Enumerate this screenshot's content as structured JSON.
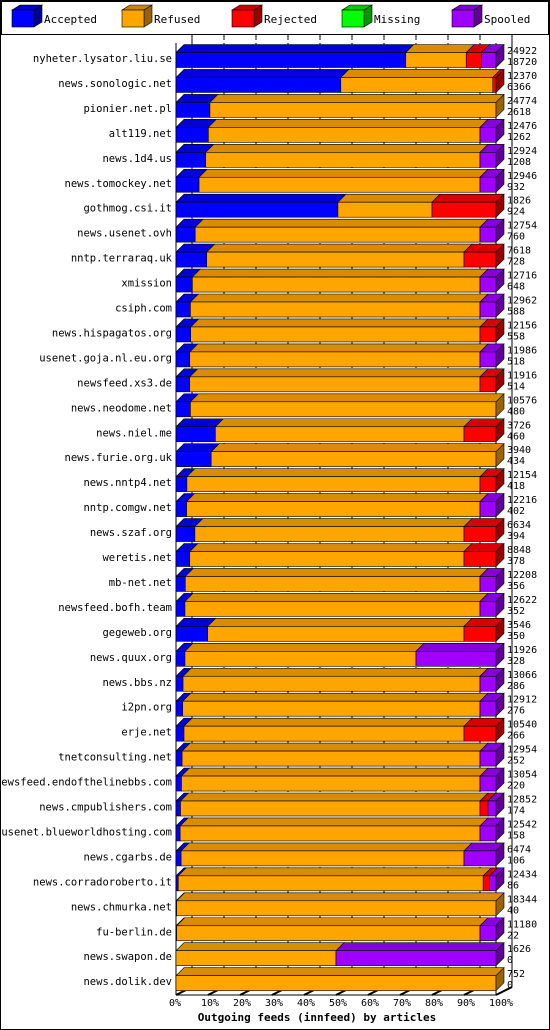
{
  "chart_data": {
    "type": "bar",
    "orientation": "horizontal",
    "stacked": true,
    "three_d": true,
    "title": "",
    "xlabel": "Outgoing feeds (innfeed) by articles",
    "x_unit": "percent",
    "xlim": [
      0,
      100
    ],
    "x_ticks": [
      "0%",
      "10%",
      "20%",
      "30%",
      "40%",
      "50%",
      "60%",
      "70%",
      "80%",
      "90%",
      "100%"
    ],
    "grid": "dashed vertical lines",
    "legend_position": "top",
    "legend": [
      {
        "name": "Accepted",
        "color": "#0000ff"
      },
      {
        "name": "Refused",
        "color": "#ffa500"
      },
      {
        "name": "Rejected",
        "color": "#ff0000"
      },
      {
        "name": "Missing",
        "color": "#00ff00"
      },
      {
        "name": "Spooled",
        "color": "#a000ff"
      }
    ],
    "rows": [
      {
        "host": "nyheter.lysator.liu.se",
        "offered": "24922",
        "accepted": "18720",
        "pct": [
          71.8,
          18.9,
          4.8,
          0,
          4.5
        ]
      },
      {
        "host": "news.sonologic.net",
        "offered": "12370",
        "accepted": "6366",
        "pct": [
          51.5,
          47.5,
          1.0,
          0,
          0
        ]
      },
      {
        "host": "pionier.net.pl",
        "offered": "24774",
        "accepted": "2618",
        "pct": [
          10.6,
          89.4,
          0,
          0,
          0
        ]
      },
      {
        "host": "alt119.net",
        "offered": "12476",
        "accepted": "1262",
        "pct": [
          10.1,
          84.9,
          0,
          0,
          5.0
        ]
      },
      {
        "host": "news.1d4.us",
        "offered": "12924",
        "accepted": "1208",
        "pct": [
          9.3,
          85.7,
          0,
          0,
          5.0
        ]
      },
      {
        "host": "news.tomockey.net",
        "offered": "12946",
        "accepted": "932",
        "pct": [
          7.2,
          87.8,
          0,
          0,
          5.0
        ]
      },
      {
        "host": "gothmog.csi.it",
        "offered": "1826",
        "accepted": "924",
        "pct": [
          50.6,
          29.4,
          20.0,
          0,
          0
        ]
      },
      {
        "host": "news.usenet.ovh",
        "offered": "12754",
        "accepted": "760",
        "pct": [
          6.0,
          89.0,
          0,
          0,
          5.0
        ]
      },
      {
        "host": "nntp.terraraq.uk",
        "offered": "7618",
        "accepted": "728",
        "pct": [
          9.6,
          80.4,
          10.0,
          0,
          0
        ]
      },
      {
        "host": "xmission",
        "offered": "12716",
        "accepted": "648",
        "pct": [
          5.1,
          89.9,
          0,
          0,
          5.0
        ]
      },
      {
        "host": "csiph.com",
        "offered": "12962",
        "accepted": "588",
        "pct": [
          4.5,
          90.5,
          0,
          0,
          5.0
        ]
      },
      {
        "host": "news.hispagatos.org",
        "offered": "12156",
        "accepted": "558",
        "pct": [
          4.6,
          90.4,
          5.0,
          0,
          0
        ]
      },
      {
        "host": "usenet.goja.nl.eu.org",
        "offered": "11986",
        "accepted": "518",
        "pct": [
          4.3,
          90.7,
          0,
          0,
          5.0
        ]
      },
      {
        "host": "newsfeed.xs3.de",
        "offered": "11916",
        "accepted": "514",
        "pct": [
          4.3,
          90.7,
          5.0,
          0,
          0
        ]
      },
      {
        "host": "news.neodome.net",
        "offered": "10576",
        "accepted": "480",
        "pct": [
          4.5,
          95.5,
          0,
          0,
          0
        ]
      },
      {
        "host": "news.niel.me",
        "offered": "3726",
        "accepted": "460",
        "pct": [
          12.3,
          77.7,
          10.0,
          0,
          0
        ]
      },
      {
        "host": "news.furie.org.uk",
        "offered": "3940",
        "accepted": "434",
        "pct": [
          11.0,
          89.0,
          0,
          0,
          0
        ]
      },
      {
        "host": "news.nntp4.net",
        "offered": "12154",
        "accepted": "418",
        "pct": [
          3.4,
          91.6,
          5.0,
          0,
          0
        ]
      },
      {
        "host": "nntp.comgw.net",
        "offered": "12216",
        "accepted": "402",
        "pct": [
          3.3,
          91.7,
          0,
          0,
          5.0
        ]
      },
      {
        "host": "news.szaf.org",
        "offered": "6634",
        "accepted": "394",
        "pct": [
          5.9,
          84.1,
          10.0,
          0,
          0
        ]
      },
      {
        "host": "weretis.net",
        "offered": "8848",
        "accepted": "378",
        "pct": [
          4.3,
          85.7,
          10.0,
          0,
          0
        ]
      },
      {
        "host": "mb-net.net",
        "offered": "12208",
        "accepted": "356",
        "pct": [
          2.9,
          92.1,
          0,
          0,
          5.0
        ]
      },
      {
        "host": "newsfeed.bofh.team",
        "offered": "12622",
        "accepted": "352",
        "pct": [
          2.8,
          92.2,
          0,
          0,
          5.0
        ]
      },
      {
        "host": "gegeweb.org",
        "offered": "3546",
        "accepted": "350",
        "pct": [
          9.9,
          80.1,
          10.0,
          0,
          0
        ]
      },
      {
        "host": "news.quux.org",
        "offered": "11926",
        "accepted": "328",
        "pct": [
          2.8,
          72.2,
          0,
          0,
          25.0
        ]
      },
      {
        "host": "news.bbs.nz",
        "offered": "13066",
        "accepted": "286",
        "pct": [
          2.2,
          92.8,
          0,
          0,
          5.0
        ]
      },
      {
        "host": "i2pn.org",
        "offered": "12912",
        "accepted": "276",
        "pct": [
          2.1,
          92.9,
          0,
          0,
          5.0
        ]
      },
      {
        "host": "erje.net",
        "offered": "10540",
        "accepted": "266",
        "pct": [
          2.5,
          87.5,
          10.0,
          0,
          0
        ]
      },
      {
        "host": "tnetconsulting.net",
        "offered": "12954",
        "accepted": "252",
        "pct": [
          1.9,
          93.1,
          0,
          0,
          5.0
        ]
      },
      {
        "host": "newsfeed.endofthelinebbs.com",
        "offered": "13054",
        "accepted": "220",
        "pct": [
          1.7,
          93.3,
          0,
          0,
          5.0
        ]
      },
      {
        "host": "news.cmpublishers.com",
        "offered": "12852",
        "accepted": "174",
        "pct": [
          1.4,
          93.6,
          2.5,
          0,
          2.5
        ]
      },
      {
        "host": "usenet.blueworldhosting.com",
        "offered": "12542",
        "accepted": "158",
        "pct": [
          1.3,
          93.7,
          0,
          0,
          5.0
        ]
      },
      {
        "host": "news.cgarbs.de",
        "offered": "6474",
        "accepted": "106",
        "pct": [
          1.6,
          88.4,
          0,
          0,
          10.0
        ]
      },
      {
        "host": "news.corradoroberto.it",
        "offered": "12434",
        "accepted": "86",
        "pct": [
          0.7,
          95.3,
          2.0,
          0,
          2.0
        ]
      },
      {
        "host": "news.chmurka.net",
        "offered": "18344",
        "accepted": "40",
        "pct": [
          0.2,
          99.8,
          0,
          0,
          0
        ]
      },
      {
        "host": "fu-berlin.de",
        "offered": "11180",
        "accepted": "22",
        "pct": [
          0.2,
          94.8,
          0,
          0,
          5.0
        ]
      },
      {
        "host": "news.swapon.de",
        "offered": "1626",
        "accepted": "0",
        "pct": [
          0,
          50,
          0,
          0,
          50
        ]
      },
      {
        "host": "news.dolik.dev",
        "offered": "752",
        "accepted": "0",
        "pct": [
          0,
          100,
          0,
          0,
          0
        ]
      }
    ]
  }
}
